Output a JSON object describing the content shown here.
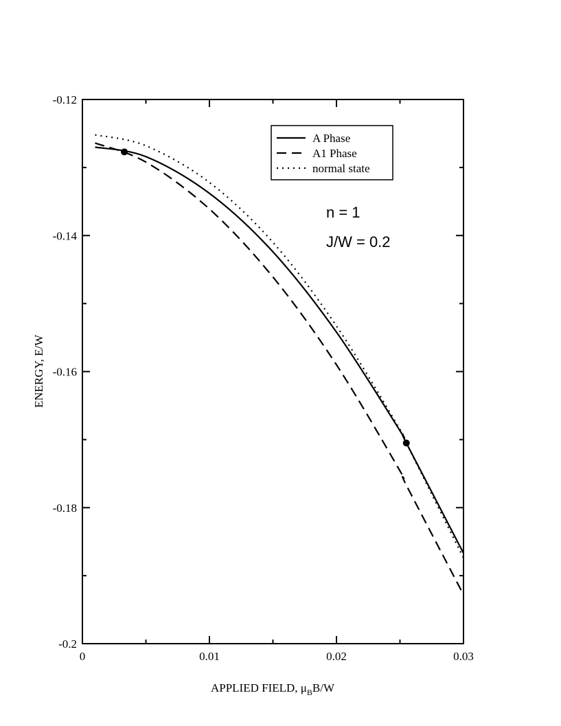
{
  "chart_data": {
    "type": "line",
    "xlabel": [
      "APPLIED FIELD, μ",
      "B",
      "B/W"
    ],
    "ylabel": "ENERGY, E/W",
    "x": [
      0.001,
      0.005,
      0.01,
      0.015,
      0.02,
      0.025,
      0.0255,
      0.03
    ],
    "series": [
      {
        "name": "A Phase",
        "color": "#000000",
        "dash": "solid",
        "values": [
          -0.127,
          -0.1284,
          -0.1338,
          -0.1424,
          -0.1542,
          -0.1687,
          -0.1705,
          -0.1867
        ]
      },
      {
        "name": "A1 Phase",
        "color": "#000000",
        "dash": "dashed",
        "values": [
          -0.1264,
          -0.1292,
          -0.1361,
          -0.1461,
          -0.159,
          -0.1746,
          -0.1767,
          -0.1928
        ]
      },
      {
        "name": "normal state",
        "color": "#000000",
        "dash": "dotted",
        "values": [
          -0.1252,
          -0.1268,
          -0.1322,
          -0.141,
          -0.1533,
          -0.1685,
          -0.1705,
          -0.1874
        ]
      }
    ],
    "markers": {
      "x": [
        0.0033,
        0.0255
      ],
      "y": [
        -0.1277,
        -0.1705
      ]
    },
    "annotations": [
      "n = 1",
      "J/W = 0.2"
    ],
    "xlim": [
      0,
      0.03
    ],
    "ylim": [
      -0.2,
      -0.12
    ],
    "xticks": [
      0,
      0.01,
      0.02,
      0.03
    ],
    "yticks": [
      -0.2,
      -0.18,
      -0.16,
      -0.14,
      -0.12
    ],
    "xminorticks": [
      0.005,
      0.015,
      0.025
    ],
    "yminorticks": [
      -0.19,
      -0.17,
      -0.15,
      -0.13
    ],
    "legend": "upper right",
    "grid": false
  }
}
